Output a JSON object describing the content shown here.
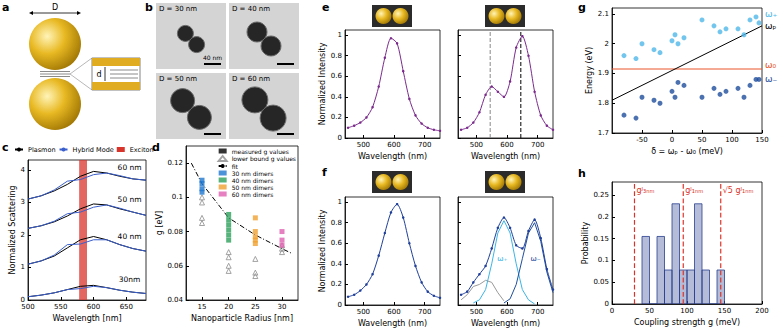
{
  "panels": {
    "a": {
      "panel": "a",
      "diameter_label": "D",
      "gap_label": "d"
    },
    "b": {
      "panel": "b",
      "tiles": [
        "D = 30 nm",
        "D = 40 nm",
        "D = 50 nm",
        "D = 60 nm"
      ],
      "scale_bar_label": "40 nm"
    }
  },
  "chart_data": [
    {
      "panel": "c",
      "type": "line",
      "xlabel": "Wavelength [nm]",
      "ylabel": "Normalized Scattering",
      "x": [
        500,
        520,
        540,
        560,
        580,
        600,
        620,
        640,
        660,
        680
      ],
      "xlim": [
        500,
        680
      ],
      "xticks": [
        500,
        550,
        600,
        650
      ],
      "ylim": [
        0,
        4.3
      ],
      "yticks": [
        0,
        1,
        2,
        3,
        4
      ],
      "legend": "top",
      "series": [
        {
          "name": "Plasmon",
          "color": "#000000",
          "values": [
            3.1,
            3.2,
            3.35,
            3.55,
            3.8,
            3.95,
            3.9,
            3.8,
            3.72,
            3.68
          ]
        },
        {
          "name": "Hybrid Mode",
          "color": "#3a5fcd",
          "values": [
            3.1,
            3.2,
            3.38,
            3.65,
            3.7,
            3.85,
            3.9,
            3.82,
            3.72,
            3.68
          ]
        },
        {
          "name": "Plasmon",
          "color": "#000000",
          "values": [
            2.2,
            2.28,
            2.4,
            2.58,
            2.8,
            2.95,
            2.92,
            2.8,
            2.7,
            2.6
          ]
        },
        {
          "name": "Hybrid Mode",
          "color": "#3a5fcd",
          "values": [
            2.2,
            2.28,
            2.42,
            2.65,
            2.7,
            2.85,
            2.92,
            2.82,
            2.7,
            2.6
          ]
        },
        {
          "name": "Plasmon",
          "color": "#000000",
          "values": [
            1.1,
            1.2,
            1.35,
            1.6,
            1.85,
            1.95,
            1.85,
            1.7,
            1.58,
            1.5
          ]
        },
        {
          "name": "Hybrid Mode",
          "color": "#3a5fcd",
          "values": [
            1.1,
            1.2,
            1.38,
            1.7,
            1.72,
            1.85,
            1.85,
            1.7,
            1.58,
            1.5
          ]
        },
        {
          "name": "Plasmon",
          "color": "#000000",
          "values": [
            0.1,
            0.15,
            0.22,
            0.32,
            0.42,
            0.45,
            0.38,
            0.3,
            0.24,
            0.2
          ]
        },
        {
          "name": "Hybrid Mode",
          "color": "#3a5fcd",
          "values": [
            0.1,
            0.15,
            0.22,
            0.32,
            0.35,
            0.42,
            0.38,
            0.3,
            0.24,
            0.2
          ]
        }
      ],
      "band": {
        "name": "Exciton",
        "color": "#d9342b",
        "range": [
          578,
          590
        ]
      },
      "annotations": [
        {
          "text": "60 nm",
          "x": 655,
          "y": 4.08
        },
        {
          "text": "50 nm",
          "x": 655,
          "y": 3.08
        },
        {
          "text": "40 nm",
          "x": 655,
          "y": 1.95
        },
        {
          "text": "30nm",
          "x": 655,
          "y": 0.62
        }
      ]
    },
    {
      "panel": "d",
      "type": "scatter",
      "xlabel": "Nanoparticle Radius [nm]",
      "ylabel": "g [eV]",
      "xlim": [
        12,
        33
      ],
      "xticks": [
        15,
        20,
        25,
        30
      ],
      "ylim": [
        0.04,
        0.13
      ],
      "yticks": [
        0.04,
        0.06,
        0.08,
        0.1,
        0.12
      ],
      "legend": "upper right",
      "marker_legend": [
        {
          "name": "measured g values",
          "marker": "square",
          "color": "#000000"
        },
        {
          "name": "lower bound g values",
          "marker": "triangle",
          "color": "#8c8c8c"
        }
      ],
      "fit": {
        "name": "fit",
        "line_style": "dashdot",
        "color": "#000000",
        "x": [
          13,
          15,
          20,
          25,
          30,
          32
        ],
        "values": [
          0.12,
          0.108,
          0.088,
          0.078,
          0.07,
          0.067
        ]
      },
      "groups": [
        {
          "name": "30 nm dimers",
          "color": "#1f77d0",
          "x": 15,
          "measured": [
            0.11,
            0.108,
            0.105,
            0.103
          ],
          "lower_bound": [
            0.1,
            0.097,
            0.088,
            0.085
          ]
        },
        {
          "name": "40 nm dimers",
          "color": "#2ca05a",
          "x": 20,
          "measured": [
            0.09,
            0.087,
            0.084,
            0.081,
            0.078,
            0.075
          ],
          "lower_bound": [
            0.068,
            0.065,
            0.06,
            0.057
          ]
        },
        {
          "name": "50 nm dimers",
          "color": "#f0a030",
          "x": 25,
          "measured": [
            0.088,
            0.08,
            0.077,
            0.075,
            0.073
          ],
          "lower_bound": [
            0.064,
            0.056,
            0.054
          ]
        },
        {
          "name": "60 nm dimers",
          "color": "#e060b0",
          "x": 30,
          "measured": [
            0.08,
            0.075,
            0.072
          ],
          "lower_bound": [
            0.072,
            0.07,
            0.068
          ]
        }
      ]
    },
    {
      "panel": "e",
      "type": "line",
      "xlabel": "Wavelength (nm)",
      "ylabel": "Normalized Intensity",
      "x": [
        450,
        470,
        490,
        510,
        530,
        550,
        570,
        590,
        610,
        630,
        650,
        670,
        690,
        710,
        730,
        750
      ],
      "xlim": [
        440,
        750
      ],
      "xticks": [
        500,
        600,
        700
      ],
      "ylim": [
        0,
        1.05
      ],
      "yticks": [
        0,
        0.2,
        0.4,
        0.6,
        0.8,
        1
      ],
      "series": [
        {
          "color": "#7b2a8c",
          "marker": "circle",
          "values": [
            0.1,
            0.12,
            0.15,
            0.2,
            0.3,
            0.5,
            0.78,
            0.97,
            0.92,
            0.65,
            0.38,
            0.22,
            0.14,
            0.1,
            0.08,
            0.07
          ]
        }
      ]
    },
    {
      "type": "line",
      "xlabel": "Wavelength (nm)",
      "tick_labels": "x",
      "x": [
        450,
        470,
        490,
        510,
        530,
        550,
        570,
        590,
        610,
        630,
        650,
        670,
        690,
        710,
        730,
        750
      ],
      "xlim": [
        440,
        750
      ],
      "xticks": [
        500,
        600,
        700
      ],
      "ylim": [
        0,
        1.05
      ],
      "yticks": [
        0,
        0.2,
        0.4,
        0.6,
        0.8,
        1
      ],
      "series": [
        {
          "color": "#7b2a8c",
          "marker": "circle",
          "values": [
            0.08,
            0.1,
            0.15,
            0.25,
            0.42,
            0.5,
            0.45,
            0.4,
            0.55,
            0.88,
            0.99,
            0.8,
            0.45,
            0.22,
            0.12,
            0.08
          ]
        }
      ],
      "vlines": [
        {
          "x": 545,
          "color": "#888888",
          "line_style": "dashed"
        },
        {
          "x": 645,
          "color": "#000000",
          "line_style": "dashed"
        }
      ]
    },
    {
      "panel": "f",
      "type": "line",
      "xlabel": "Wavelength (nm)",
      "ylabel": "Normalized Intensity",
      "x": [
        450,
        470,
        490,
        510,
        530,
        550,
        570,
        590,
        610,
        630,
        650,
        670,
        690,
        710,
        730,
        750
      ],
      "xlim": [
        440,
        750
      ],
      "xticks": [
        500,
        600,
        700
      ],
      "ylim": [
        0,
        1.05
      ],
      "yticks": [
        0,
        0.2,
        0.4,
        0.6,
        0.8,
        1
      ],
      "series": [
        {
          "color": "#1f3f9a",
          "marker": "circle",
          "values": [
            0.08,
            0.1,
            0.14,
            0.2,
            0.3,
            0.48,
            0.7,
            0.9,
            0.98,
            0.85,
            0.6,
            0.38,
            0.22,
            0.13,
            0.09,
            0.07
          ]
        }
      ]
    },
    {
      "type": "line",
      "xlabel": "Wavelength (nm)",
      "tick_labels": "x",
      "x": [
        450,
        470,
        490,
        510,
        530,
        550,
        570,
        590,
        610,
        630,
        650,
        670,
        690,
        710,
        730,
        750
      ],
      "xlim": [
        440,
        750
      ],
      "xticks": [
        500,
        600,
        700
      ],
      "ylim": [
        0,
        1.05
      ],
      "yticks": [
        0,
        0.2,
        0.4,
        0.6,
        0.8,
        1
      ],
      "series": [
        {
          "color": "#999999",
          "x": [
            450,
            470,
            490,
            510,
            530,
            550,
            570,
            590
          ],
          "values": [
            0.05,
            0.1,
            0.18,
            0.2,
            0.24,
            0.22,
            0.12,
            0.04
          ]
        },
        {
          "color": "#3cb4e6",
          "x": [
            490,
            510,
            530,
            550,
            570,
            590,
            610,
            630,
            650,
            670,
            690
          ],
          "values": [
            0.02,
            0.05,
            0.15,
            0.4,
            0.7,
            0.82,
            0.7,
            0.4,
            0.15,
            0.05,
            0.01
          ]
        },
        {
          "color": "#1f4e9c",
          "x": [
            590,
            610,
            630,
            650,
            670,
            690,
            710,
            730,
            750
          ],
          "values": [
            0.02,
            0.06,
            0.2,
            0.45,
            0.7,
            0.8,
            0.62,
            0.32,
            0.12
          ]
        },
        {
          "color": "#1f3f9a",
          "marker": "circle",
          "values": [
            0.1,
            0.13,
            0.22,
            0.3,
            0.38,
            0.55,
            0.75,
            0.85,
            0.75,
            0.58,
            0.55,
            0.72,
            0.83,
            0.65,
            0.35,
            0.15
          ]
        }
      ],
      "annotations": [
        {
          "text": "ω₊",
          "x": 585,
          "y": 0.45,
          "color": "#3cb4e6"
        },
        {
          "text": "ω₋",
          "x": 693,
          "y": 0.45,
          "color": "#1f4e9c"
        }
      ]
    },
    {
      "panel": "g",
      "type": "scatter",
      "xlabel": "δ = ωₚ - ω₀ (meV)",
      "ylabel": "Energy (eV)",
      "xlim": [
        -100,
        150
      ],
      "xticks": [
        -50,
        0,
        50,
        100,
        150
      ],
      "ylim": [
        1.7,
        2.12
      ],
      "yticks": [
        1.7,
        1.8,
        1.9,
        2,
        2.1
      ],
      "series": [
        {
          "type": "line",
          "color": "#e8552a",
          "x": [
            -100,
            150
          ],
          "values": [
            1.915,
            1.915
          ]
        },
        {
          "type": "line",
          "color": "#000000",
          "x": [
            -100,
            150
          ],
          "values": [
            1.81,
            2.06
          ]
        },
        {
          "type": "scatter",
          "color": "#4fb8ea",
          "marker": "circle",
          "x": [
            -80,
            -60,
            -50,
            -30,
            -20,
            0,
            5,
            10,
            20,
            50,
            70,
            80,
            90,
            110,
            120,
            130,
            140,
            145
          ],
          "values": [
            1.96,
            1.95,
            2.0,
            1.98,
            1.97,
            2.01,
            2.03,
            2.0,
            2.02,
            2.08,
            2.06,
            2.04,
            2.05,
            2.05,
            2.03,
            2.08,
            2.09,
            2.07
          ]
        },
        {
          "type": "scatter",
          "color": "#1f4e9c",
          "marker": "circle",
          "x": [
            -80,
            -60,
            -50,
            -30,
            -20,
            0,
            5,
            10,
            20,
            50,
            70,
            80,
            90,
            110,
            120,
            130,
            140,
            145
          ],
          "values": [
            1.76,
            1.75,
            1.82,
            1.81,
            1.8,
            1.84,
            1.82,
            1.87,
            1.86,
            1.82,
            1.85,
            1.83,
            1.84,
            1.85,
            1.82,
            1.86,
            1.88,
            1.88
          ]
        }
      ],
      "annotations": [
        {
          "text": "ω₊",
          "x": 150,
          "y": 2.1,
          "color": "#4fb8ea"
        },
        {
          "text": "ωₚ",
          "x": 150,
          "y": 2.06,
          "color": "#000000"
        },
        {
          "text": "ω₀",
          "x": 150,
          "y": 1.93,
          "color": "#e8552a"
        },
        {
          "text": "ω₋",
          "x": 150,
          "y": 1.88,
          "color": "#1f4e9c"
        }
      ]
    },
    {
      "panel": "h",
      "type": "histogram",
      "xlabel": "Coupling strength g (meV)",
      "ylabel": "Probability",
      "xlim": [
        0,
        200
      ],
      "xticks": [
        0,
        50,
        100,
        150,
        200
      ],
      "ylim": [
        0,
        0.28
      ],
      "yticks": [
        0,
        0.05,
        0.1,
        0.15,
        0.2,
        0.25
      ],
      "bins": [
        40,
        50,
        60,
        70,
        80,
        90,
        100,
        110,
        120,
        130,
        140,
        150
      ],
      "values": [
        0.155,
        0,
        0.155,
        0.078,
        0.23,
        0.078,
        0.078,
        0.23,
        0.078,
        0,
        0.078
      ],
      "color": "#2a3f8f",
      "ref_lines": [
        {
          "x": 30,
          "label": "gᴶ₃ₙₘ",
          "color": "#d9342b",
          "line_style": "dashed"
        },
        {
          "x": 95,
          "label": "gᴶ₁ₙₘ",
          "color": "#d9342b",
          "line_style": "dashed"
        },
        {
          "x": 145,
          "label": "√5 gᴶ₁ₙₘ",
          "color": "#d9342b",
          "line_style": "dashed"
        }
      ]
    }
  ]
}
